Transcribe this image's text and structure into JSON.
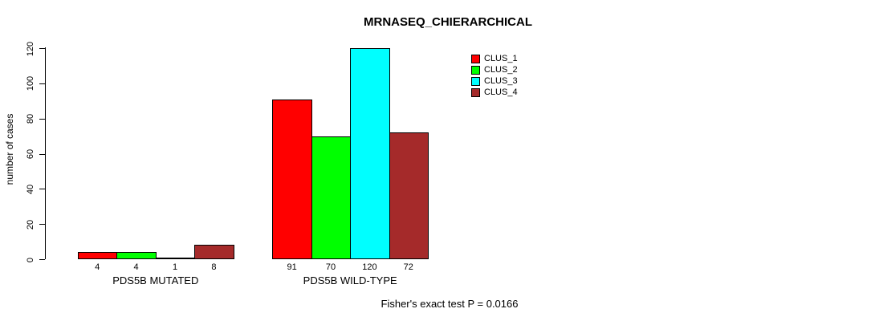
{
  "chart_data": {
    "type": "bar",
    "title": "MRNASEQ_CHIERARCHICAL",
    "xlabel": "",
    "ylabel": "number of cases",
    "ylim": [
      0,
      120
    ],
    "yticks": [
      0,
      20,
      40,
      60,
      80,
      100,
      120
    ],
    "grid": false,
    "legend_position": "top-right",
    "categories": [
      "PDS5B MUTATED",
      "PDS5B WILD-TYPE"
    ],
    "series": [
      {
        "name": "CLUS_1",
        "color": "#ff0000",
        "values": [
          4,
          91
        ]
      },
      {
        "name": "CLUS_2",
        "color": "#00ff00",
        "values": [
          4,
          70
        ]
      },
      {
        "name": "CLUS_3",
        "color": "#00ffff",
        "values": [
          1,
          120
        ]
      },
      {
        "name": "CLUS_4",
        "color": "#a52a2a",
        "values": [
          8,
          72
        ]
      }
    ],
    "bar_value_labels": [
      [
        "4",
        "4",
        "1",
        "8"
      ],
      [
        "91",
        "70",
        "120",
        "72"
      ]
    ],
    "annotation": "Fisher's exact test P = 0.0166"
  }
}
